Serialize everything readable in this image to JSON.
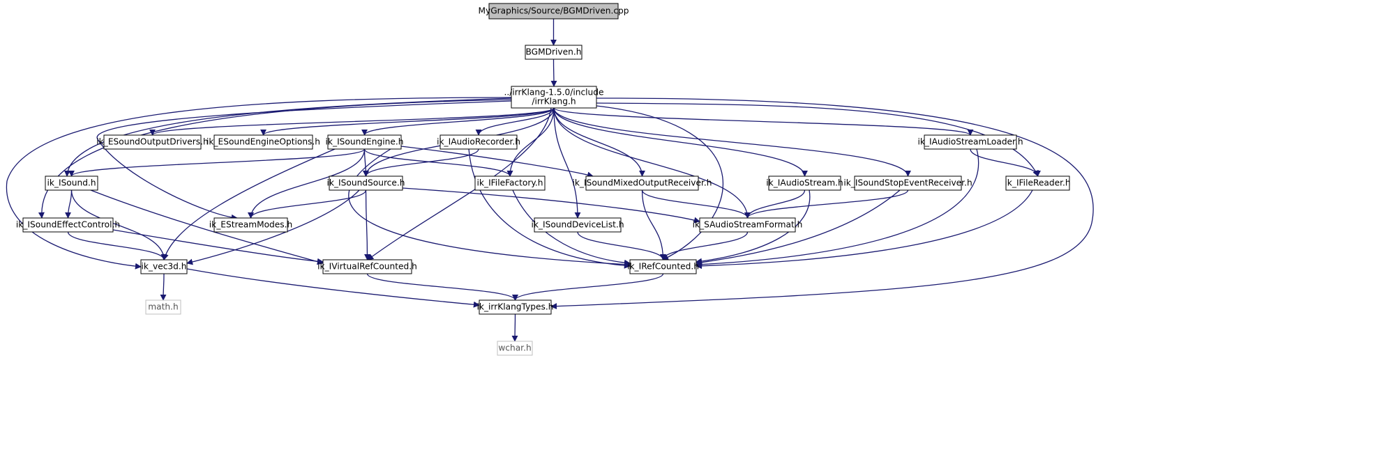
{
  "diagram": {
    "type": "include-dependency-graph",
    "colors": {
      "edge": "#191970",
      "root_fill": "#bfbfbf",
      "node_fill": "#ffffff",
      "node_border": "#000000",
      "system_border": "#bfbfbf",
      "system_text": "#555555"
    },
    "nodes": [
      {
        "id": "root",
        "lines": [
          "MyGraphics/Source/BGMDriven.cpp"
        ],
        "kind": "root"
      },
      {
        "id": "bgmdriven",
        "lines": [
          "BGMDriven.h"
        ],
        "kind": "normal"
      },
      {
        "id": "irrklang",
        "lines": [
          "../irrKlang-1.5.0/include",
          "/irrKlang.h"
        ],
        "kind": "normal"
      },
      {
        "id": "esoundoutputdrivers",
        "lines": [
          "ik_ESoundOutputDrivers.h"
        ],
        "kind": "normal"
      },
      {
        "id": "esoundengineoptions",
        "lines": [
          "ik_ESoundEngineOptions.h"
        ],
        "kind": "normal"
      },
      {
        "id": "isoundengine",
        "lines": [
          "ik_ISoundEngine.h"
        ],
        "kind": "normal"
      },
      {
        "id": "iaudiorecorder",
        "lines": [
          "ik_IAudioRecorder.h"
        ],
        "kind": "normal"
      },
      {
        "id": "iaudiostreamloader",
        "lines": [
          "ik_IAudioStreamLoader.h"
        ],
        "kind": "normal"
      },
      {
        "id": "isound",
        "lines": [
          "ik_ISound.h"
        ],
        "kind": "normal"
      },
      {
        "id": "isoundsource",
        "lines": [
          "ik_ISoundSource.h"
        ],
        "kind": "normal"
      },
      {
        "id": "ifilefactory",
        "lines": [
          "ik_IFileFactory.h"
        ],
        "kind": "normal"
      },
      {
        "id": "isoundmixedoutputreceiver",
        "lines": [
          "ik_ISoundMixedOutputReceiver.h"
        ],
        "kind": "normal"
      },
      {
        "id": "iaudiostream",
        "lines": [
          "ik_IAudioStream.h"
        ],
        "kind": "normal"
      },
      {
        "id": "isoundstopeventreceiver",
        "lines": [
          "ik_ISoundStopEventReceiver.h"
        ],
        "kind": "normal"
      },
      {
        "id": "ifilereader",
        "lines": [
          "ik_IFileReader.h"
        ],
        "kind": "normal"
      },
      {
        "id": "isoundeffectcontrol",
        "lines": [
          "ik_ISoundEffectControl.h"
        ],
        "kind": "normal"
      },
      {
        "id": "estreammodes",
        "lines": [
          "ik_EStreamModes.h"
        ],
        "kind": "normal"
      },
      {
        "id": "isounddevicelist",
        "lines": [
          "ik_ISoundDeviceList.h"
        ],
        "kind": "normal"
      },
      {
        "id": "saudiostreamformat",
        "lines": [
          "ik_SAudioStreamFormat.h"
        ],
        "kind": "normal"
      },
      {
        "id": "vec3d",
        "lines": [
          "ik_vec3d.h"
        ],
        "kind": "normal"
      },
      {
        "id": "ivirtualrefcounted",
        "lines": [
          "ik_IVirtualRefCounted.h"
        ],
        "kind": "normal"
      },
      {
        "id": "irefcounted",
        "lines": [
          "ik_IRefCounted.h"
        ],
        "kind": "normal"
      },
      {
        "id": "mathh",
        "lines": [
          "math.h"
        ],
        "kind": "system"
      },
      {
        "id": "irrklangtypes",
        "lines": [
          "ik_irrKlangTypes.h"
        ],
        "kind": "normal"
      },
      {
        "id": "wcharh",
        "lines": [
          "wchar.h"
        ],
        "kind": "system"
      }
    ],
    "edges": [
      {
        "from": "root",
        "to": "bgmdriven"
      },
      {
        "from": "bgmdriven",
        "to": "irrklang"
      },
      {
        "from": "irrklang",
        "to": "esoundoutputdrivers"
      },
      {
        "from": "irrklang",
        "to": "esoundengineoptions"
      },
      {
        "from": "irrklang",
        "to": "isoundengine"
      },
      {
        "from": "irrklang",
        "to": "iaudiorecorder"
      },
      {
        "from": "irrklang",
        "to": "iaudiostreamloader"
      },
      {
        "from": "irrklang",
        "to": "isound"
      },
      {
        "from": "irrklang",
        "to": "isoundsource"
      },
      {
        "from": "irrklang",
        "to": "ifilefactory"
      },
      {
        "from": "irrklang",
        "to": "isoundmixedoutputreceiver"
      },
      {
        "from": "irrklang",
        "to": "iaudiostream"
      },
      {
        "from": "irrklang",
        "to": "isoundstopeventreceiver"
      },
      {
        "from": "irrklang",
        "to": "ifilereader"
      },
      {
        "from": "irrklang",
        "to": "isoundeffectcontrol"
      },
      {
        "from": "irrklang",
        "to": "estreammodes"
      },
      {
        "from": "irrklang",
        "to": "isounddevicelist"
      },
      {
        "from": "irrklang",
        "to": "saudiostreamformat"
      },
      {
        "from": "irrklang",
        "to": "vec3d"
      },
      {
        "from": "irrklang",
        "to": "ivirtualrefcounted"
      },
      {
        "from": "irrklang",
        "to": "irefcounted"
      },
      {
        "from": "irrklang",
        "to": "irrklangtypes"
      },
      {
        "from": "isoundengine",
        "to": "isound"
      },
      {
        "from": "isoundengine",
        "to": "isoundsource"
      },
      {
        "from": "isoundengine",
        "to": "ifilefactory"
      },
      {
        "from": "isoundengine",
        "to": "isoundmixedoutputreceiver"
      },
      {
        "from": "isoundengine",
        "to": "estreammodes"
      },
      {
        "from": "isoundengine",
        "to": "vec3d"
      },
      {
        "from": "isoundengine",
        "to": "irefcounted"
      },
      {
        "from": "iaudiorecorder",
        "to": "isoundsource"
      },
      {
        "from": "iaudiorecorder",
        "to": "irefcounted"
      },
      {
        "from": "iaudiostreamloader",
        "to": "ifilereader"
      },
      {
        "from": "iaudiostreamloader",
        "to": "irefcounted"
      },
      {
        "from": "isound",
        "to": "isoundeffectcontrol"
      },
      {
        "from": "isound",
        "to": "vec3d"
      },
      {
        "from": "isound",
        "to": "ivirtualrefcounted"
      },
      {
        "from": "isoundsource",
        "to": "estreammodes"
      },
      {
        "from": "isoundsource",
        "to": "saudiostreamformat"
      },
      {
        "from": "isoundsource",
        "to": "vec3d"
      },
      {
        "from": "isoundsource",
        "to": "ivirtualrefcounted"
      },
      {
        "from": "ifilefactory",
        "to": "irefcounted"
      },
      {
        "from": "isoundmixedoutputreceiver",
        "to": "saudiostreamformat"
      },
      {
        "from": "isoundmixedoutputreceiver",
        "to": "irefcounted"
      },
      {
        "from": "iaudiostream",
        "to": "saudiostreamformat"
      },
      {
        "from": "iaudiostream",
        "to": "irefcounted"
      },
      {
        "from": "isoundstopeventreceiver",
        "to": "saudiostreamformat"
      },
      {
        "from": "isoundstopeventreceiver",
        "to": "irefcounted"
      },
      {
        "from": "ifilereader",
        "to": "irefcounted"
      },
      {
        "from": "isoundeffectcontrol",
        "to": "vec3d"
      },
      {
        "from": "isoundeffectcontrol",
        "to": "ivirtualrefcounted"
      },
      {
        "from": "isounddevicelist",
        "to": "irefcounted"
      },
      {
        "from": "saudiostreamformat",
        "to": "irefcounted"
      },
      {
        "from": "vec3d",
        "to": "mathh"
      },
      {
        "from": "vec3d",
        "to": "irrklangtypes"
      },
      {
        "from": "ivirtualrefcounted",
        "to": "irrklangtypes"
      },
      {
        "from": "irefcounted",
        "to": "irrklangtypes"
      },
      {
        "from": "irrklangtypes",
        "to": "wcharh"
      }
    ]
  }
}
